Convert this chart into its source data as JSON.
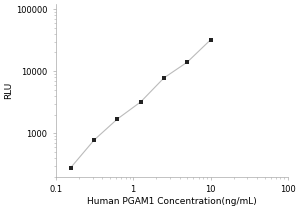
{
  "title": "",
  "xlabel": "Human PGAM1 Concentration(ng/mL)",
  "ylabel": "RLU",
  "x_data": [
    0.156,
    0.313,
    0.625,
    1.25,
    2.5,
    5.0,
    10.0
  ],
  "y_data": [
    280,
    780,
    1700,
    3200,
    7800,
    14000,
    32000
  ],
  "xlim": [
    0.1,
    100
  ],
  "ylim": [
    200,
    120000
  ],
  "yticks": [
    1000,
    10000,
    100000
  ],
  "ytick_labels": [
    "1000",
    "10000",
    "100000"
  ],
  "xticks": [
    0.1,
    1,
    10,
    100
  ],
  "xtick_labels": [
    "0.1",
    "1",
    "10",
    "100"
  ],
  "marker": "s",
  "marker_color": "#222222",
  "marker_size": 3.5,
  "line_color": "#bbbbbb",
  "line_style": "-",
  "line_width": 0.8,
  "background_color": "#ffffff",
  "xlabel_fontsize": 6.5,
  "ylabel_fontsize": 6.5,
  "tick_fontsize": 6,
  "spine_color": "#aaaaaa"
}
